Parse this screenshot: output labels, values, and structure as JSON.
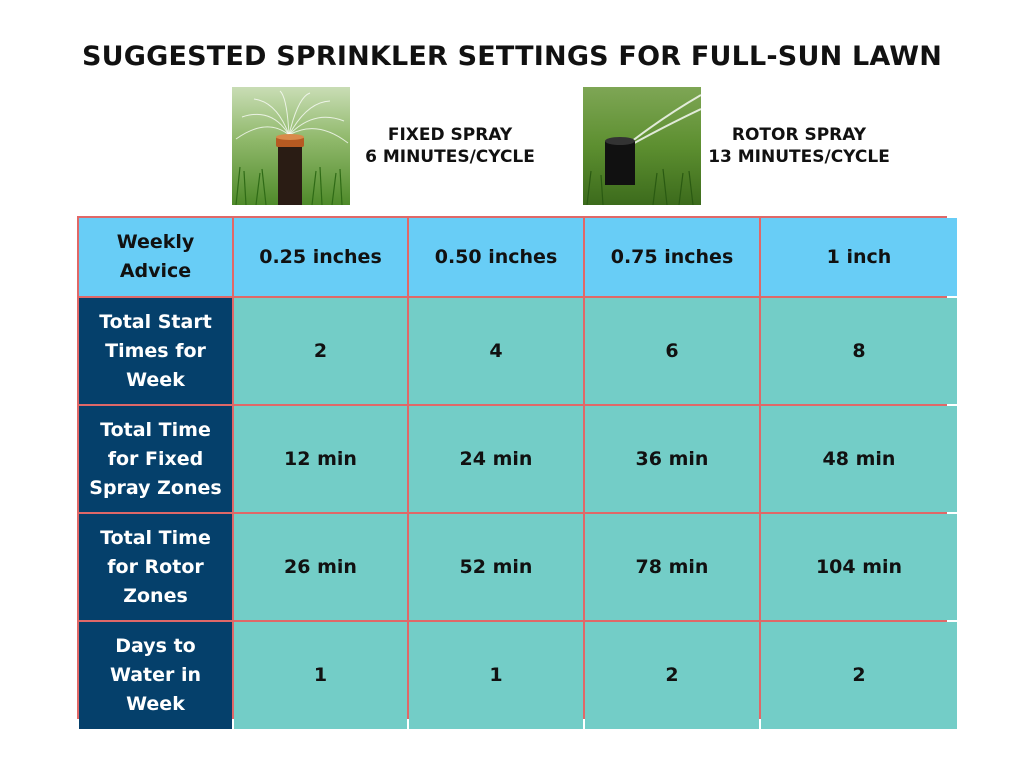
{
  "title": "SUGGESTED SPRINKLER SETTINGS FOR FULL-SUN LAWN",
  "sprinklers": [
    {
      "name": "FIXED SPRAY",
      "rate": "6 MINUTES/CYCLE",
      "image": "fixed-spray-sprinkler-photo"
    },
    {
      "name": "ROTOR SPRAY",
      "rate": "13 MINUTES/CYCLE",
      "image": "rotor-spray-sprinkler-photo"
    }
  ],
  "table": {
    "corner": "Weekly Advice",
    "columns": [
      "0.25 inches",
      "0.50 inches",
      "0.75 inches",
      "1 inch"
    ],
    "rows": [
      {
        "label": "Total Start Times for Week",
        "values": [
          "2",
          "4",
          "6",
          "8"
        ]
      },
      {
        "label": "Total Time for Fixed Spray Zones",
        "values": [
          "12 min",
          "24 min",
          "36 min",
          "48 min"
        ]
      },
      {
        "label": "Total Time for Rotor Zones",
        "values": [
          "26 min",
          "52 min",
          "78 min",
          "104 min"
        ]
      },
      {
        "label": "Days to Water in Week",
        "values": [
          "1",
          "1",
          "2",
          "2"
        ]
      }
    ]
  },
  "colors": {
    "header_fill": "#68cdf6",
    "row_label_fill": "#05406b",
    "cell_fill": "#73cdc7",
    "border": "#e06868",
    "text": "#111111"
  }
}
